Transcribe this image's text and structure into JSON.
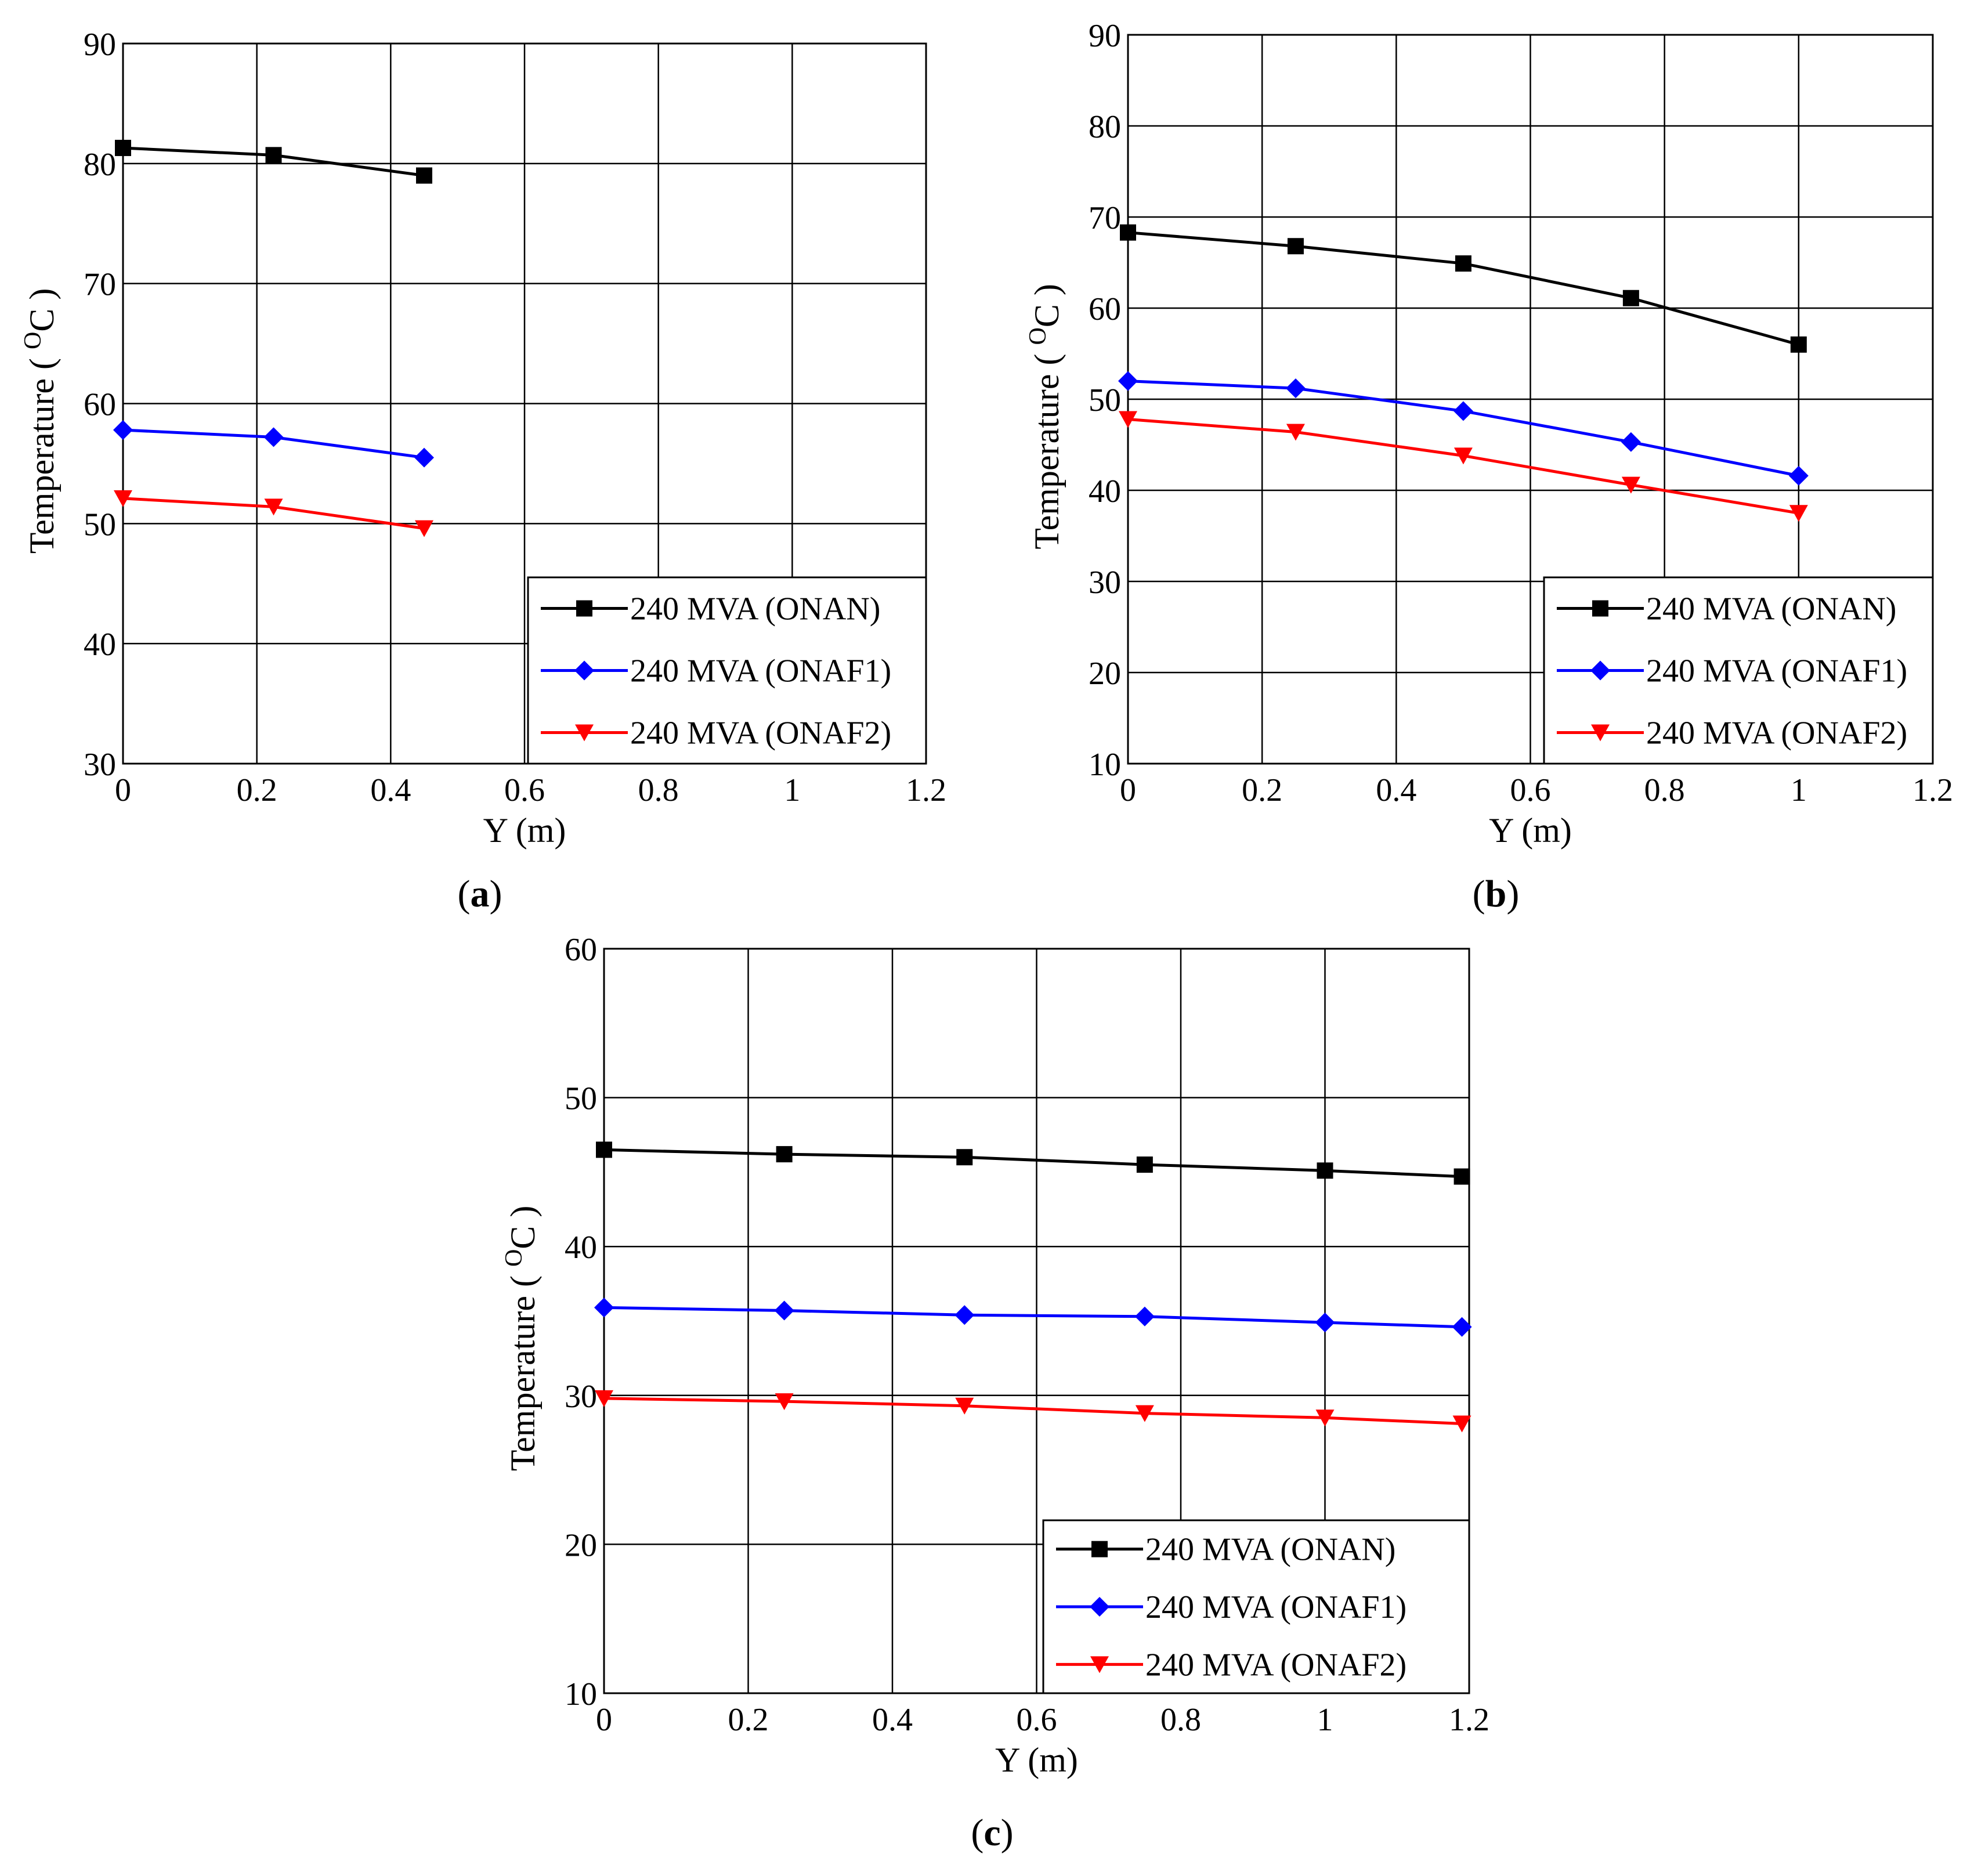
{
  "chart_data": [
    {
      "type": "line",
      "panel_label": "a",
      "xlabel": "Y (m)",
      "ylabel": "Temperature",
      "ylabel_unit_sup": "O",
      "ylabel_unit": "C",
      "xlim": [
        0,
        1.2
      ],
      "ylim": [
        30,
        90
      ],
      "xticks": [
        0,
        0.2,
        0.4,
        0.6,
        0.8,
        1,
        1.2
      ],
      "xtick_labels": [
        "0",
        "0.2",
        "0.4",
        "0.6",
        "0.8",
        "1",
        "1.2"
      ],
      "yticks": [
        30,
        40,
        50,
        60,
        70,
        80,
        90
      ],
      "ytick_labels": [
        "30",
        "40",
        "50",
        "60",
        "70",
        "80",
        "90"
      ],
      "grid": true,
      "legend_position": "bottom-right",
      "series": [
        {
          "name": "240 MVA (ONAN)",
          "color": "#000000",
          "marker": "square",
          "x": [
            0,
            0.225,
            0.45
          ],
          "y": [
            81.3,
            80.7,
            79.0
          ]
        },
        {
          "name": "240 MVA (ONAF1)",
          "color": "#0000ff",
          "marker": "diamond",
          "x": [
            0,
            0.225,
            0.45
          ],
          "y": [
            57.8,
            57.2,
            55.5
          ]
        },
        {
          "name": "240 MVA (ONAF2)",
          "color": "#ff0000",
          "marker": "triangle-down",
          "x": [
            0,
            0.225,
            0.45
          ],
          "y": [
            52.1,
            51.4,
            49.6
          ]
        }
      ]
    },
    {
      "type": "line",
      "panel_label": "b",
      "xlabel": "Y (m)",
      "ylabel": "Temperature",
      "ylabel_unit_sup": "O",
      "ylabel_unit": "C",
      "xlim": [
        0,
        1.2
      ],
      "ylim": [
        10,
        90
      ],
      "xticks": [
        0,
        0.2,
        0.4,
        0.6,
        0.8,
        1,
        1.2
      ],
      "xtick_labels": [
        "0",
        "0.2",
        "0.4",
        "0.6",
        "0.8",
        "1",
        "1.2"
      ],
      "yticks": [
        10,
        20,
        30,
        40,
        50,
        60,
        70,
        80,
        90
      ],
      "ytick_labels": [
        "10",
        "20",
        "30",
        "40",
        "50",
        "60",
        "70",
        "80",
        "90"
      ],
      "grid": true,
      "legend_position": "bottom-right",
      "series": [
        {
          "name": "240 MVA (ONAN)",
          "color": "#000000",
          "marker": "square",
          "x": [
            0,
            0.25,
            0.5,
            0.75,
            1
          ],
          "y": [
            68.3,
            66.8,
            64.9,
            61.1,
            56.0
          ]
        },
        {
          "name": "240 MVA (ONAF1)",
          "color": "#0000ff",
          "marker": "diamond",
          "x": [
            0,
            0.25,
            0.5,
            0.75,
            1
          ],
          "y": [
            52.0,
            51.2,
            48.7,
            45.3,
            41.6
          ]
        },
        {
          "name": "240 MVA (ONAF2)",
          "color": "#ff0000",
          "marker": "triangle-down",
          "x": [
            0,
            0.25,
            0.5,
            0.75,
            1
          ],
          "y": [
            47.8,
            46.4,
            43.8,
            40.6,
            37.5
          ]
        }
      ]
    },
    {
      "type": "line",
      "panel_label": "c",
      "xlabel": "Y (m)",
      "ylabel": "Temperature",
      "ylabel_unit_sup": "O",
      "ylabel_unit": "C",
      "xlim": [
        0,
        1.2
      ],
      "ylim": [
        10,
        60
      ],
      "xticks": [
        0,
        0.2,
        0.4,
        0.6,
        0.8,
        1,
        1.2
      ],
      "xtick_labels": [
        "0",
        "0.2",
        "0.4",
        "0.6",
        "0.8",
        "1",
        "1.2"
      ],
      "yticks": [
        10,
        20,
        30,
        40,
        50,
        60
      ],
      "ytick_labels": [
        "10",
        "20",
        "30",
        "40",
        "50",
        "60"
      ],
      "grid": true,
      "legend_position": "bottom-right",
      "series": [
        {
          "name": "240 MVA (ONAN)",
          "color": "#000000",
          "marker": "square",
          "x": [
            0,
            0.25,
            0.5,
            0.75,
            1,
            1.19
          ],
          "y": [
            46.5,
            46.2,
            46.0,
            45.5,
            45.1,
            44.7
          ]
        },
        {
          "name": "240 MVA (ONAF1)",
          "color": "#0000ff",
          "marker": "diamond",
          "x": [
            0,
            0.25,
            0.5,
            0.75,
            1,
            1.19
          ],
          "y": [
            35.9,
            35.7,
            35.4,
            35.3,
            34.9,
            34.6
          ]
        },
        {
          "name": "240 MVA (ONAF2)",
          "color": "#ff0000",
          "marker": "triangle-down",
          "x": [
            0,
            0.25,
            0.5,
            0.75,
            1,
            1.19
          ],
          "y": [
            29.8,
            29.6,
            29.3,
            28.8,
            28.5,
            28.1
          ]
        }
      ]
    }
  ]
}
